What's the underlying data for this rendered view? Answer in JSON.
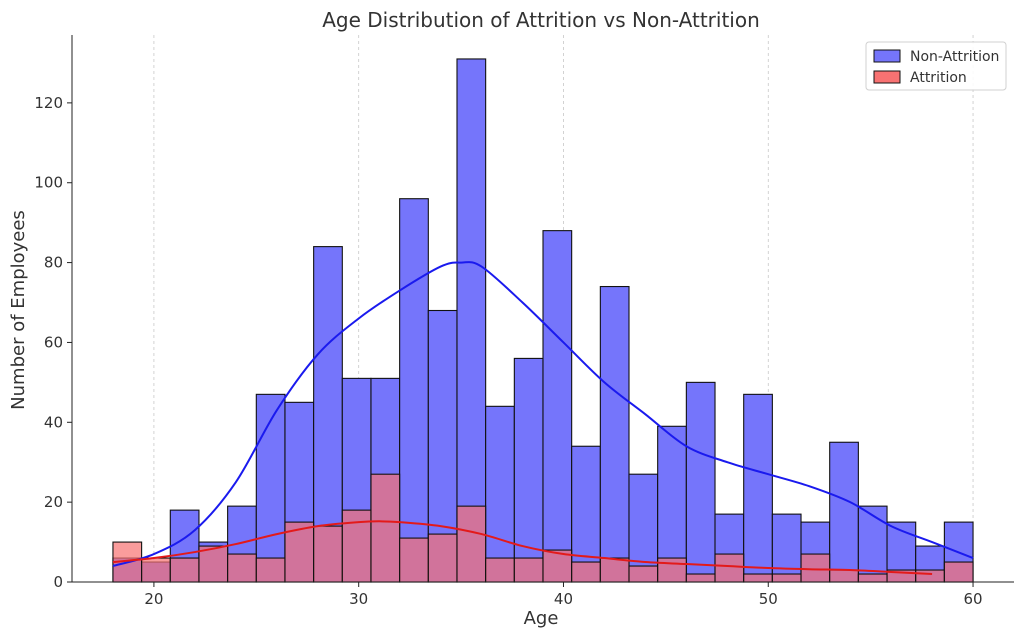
{
  "chart_data": {
    "type": "histogram",
    "title": "Age Distribution of Attrition vs Non-Attrition",
    "xlabel": "Age",
    "ylabel": "Number of Employees",
    "xlim": [
      16,
      62
    ],
    "ylim": [
      0,
      137
    ],
    "x_ticks": [
      20,
      30,
      40,
      50,
      60
    ],
    "y_ticks": [
      0,
      20,
      40,
      60,
      80,
      100,
      120
    ],
    "grid": "x-dashed",
    "legend_position": "top-right",
    "series": [
      {
        "name": "Non-Attrition",
        "color": "#7575fb",
        "edge_color": "#111111",
        "kde_color": "#1a1aee",
        "bins": [
          {
            "x0": 18.0,
            "x1": 19.4,
            "count": 6
          },
          {
            "x0": 19.4,
            "x1": 20.8,
            "count": 5
          },
          {
            "x0": 20.8,
            "x1": 22.2,
            "count": 18
          },
          {
            "x0": 22.2,
            "x1": 23.6,
            "count": 10
          },
          {
            "x0": 23.6,
            "x1": 25.0,
            "count": 19
          },
          {
            "x0": 25.0,
            "x1": 26.4,
            "count": 47
          },
          {
            "x0": 26.4,
            "x1": 27.8,
            "count": 45
          },
          {
            "x0": 27.8,
            "x1": 29.2,
            "count": 84
          },
          {
            "x0": 29.2,
            "x1": 30.6,
            "count": 51
          },
          {
            "x0": 30.6,
            "x1": 32.0,
            "count": 51
          },
          {
            "x0": 32.0,
            "x1": 33.4,
            "count": 96
          },
          {
            "x0": 33.4,
            "x1": 34.8,
            "count": 68
          },
          {
            "x0": 34.8,
            "x1": 36.2,
            "count": 131
          },
          {
            "x0": 36.2,
            "x1": 37.6,
            "count": 44
          },
          {
            "x0": 37.6,
            "x1": 39.0,
            "count": 56
          },
          {
            "x0": 39.0,
            "x1": 40.4,
            "count": 88
          },
          {
            "x0": 40.4,
            "x1": 41.8,
            "count": 34
          },
          {
            "x0": 41.8,
            "x1": 43.2,
            "count": 74
          },
          {
            "x0": 43.2,
            "x1": 44.6,
            "count": 27
          },
          {
            "x0": 44.6,
            "x1": 46.0,
            "count": 39
          },
          {
            "x0": 46.0,
            "x1": 47.4,
            "count": 50
          },
          {
            "x0": 47.4,
            "x1": 48.8,
            "count": 17
          },
          {
            "x0": 48.8,
            "x1": 50.2,
            "count": 47
          },
          {
            "x0": 50.2,
            "x1": 51.6,
            "count": 17
          },
          {
            "x0": 51.6,
            "x1": 53.0,
            "count": 15
          },
          {
            "x0": 53.0,
            "x1": 54.4,
            "count": 35
          },
          {
            "x0": 54.4,
            "x1": 55.8,
            "count": 19
          },
          {
            "x0": 55.8,
            "x1": 57.2,
            "count": 15
          },
          {
            "x0": 57.2,
            "x1": 58.6,
            "count": 9
          },
          {
            "x0": 58.6,
            "x1": 60.0,
            "count": 15
          }
        ],
        "kde": {
          "x": [
            18,
            20,
            22,
            24,
            26,
            28,
            30,
            32,
            34,
            35,
            36,
            38,
            40,
            42,
            44,
            46,
            48,
            50,
            52,
            54,
            56,
            58,
            60
          ],
          "y": [
            4,
            7,
            13,
            25,
            43,
            57,
            66,
            73,
            79,
            80,
            79,
            70,
            60,
            50,
            42,
            34,
            30,
            27,
            24,
            20,
            14,
            10,
            6
          ]
        }
      },
      {
        "name": "Attrition",
        "color": "#f87272",
        "edge_color": "#111111",
        "kde_color": "#e31a1a",
        "bins": [
          {
            "x0": 18.0,
            "x1": 19.4,
            "count": 10
          },
          {
            "x0": 19.4,
            "x1": 20.8,
            "count": 6
          },
          {
            "x0": 20.8,
            "x1": 22.2,
            "count": 6
          },
          {
            "x0": 22.2,
            "x1": 23.6,
            "count": 9
          },
          {
            "x0": 23.6,
            "x1": 25.0,
            "count": 7
          },
          {
            "x0": 25.0,
            "x1": 26.4,
            "count": 6
          },
          {
            "x0": 26.4,
            "x1": 27.8,
            "count": 15
          },
          {
            "x0": 27.8,
            "x1": 29.2,
            "count": 14
          },
          {
            "x0": 29.2,
            "x1": 30.6,
            "count": 18
          },
          {
            "x0": 30.6,
            "x1": 32.0,
            "count": 27
          },
          {
            "x0": 32.0,
            "x1": 33.4,
            "count": 11
          },
          {
            "x0": 33.4,
            "x1": 34.8,
            "count": 12
          },
          {
            "x0": 34.8,
            "x1": 36.2,
            "count": 19
          },
          {
            "x0": 36.2,
            "x1": 37.6,
            "count": 6
          },
          {
            "x0": 37.6,
            "x1": 39.0,
            "count": 6
          },
          {
            "x0": 39.0,
            "x1": 40.4,
            "count": 8
          },
          {
            "x0": 40.4,
            "x1": 41.8,
            "count": 5
          },
          {
            "x0": 41.8,
            "x1": 43.2,
            "count": 6
          },
          {
            "x0": 43.2,
            "x1": 44.6,
            "count": 4
          },
          {
            "x0": 44.6,
            "x1": 46.0,
            "count": 6
          },
          {
            "x0": 46.0,
            "x1": 47.4,
            "count": 2
          },
          {
            "x0": 47.4,
            "x1": 48.8,
            "count": 7
          },
          {
            "x0": 48.8,
            "x1": 50.2,
            "count": 2
          },
          {
            "x0": 50.2,
            "x1": 51.6,
            "count": 2
          },
          {
            "x0": 51.6,
            "x1": 53.0,
            "count": 7
          },
          {
            "x0": 53.0,
            "x1": 54.4,
            "count": 3
          },
          {
            "x0": 54.4,
            "x1": 55.8,
            "count": 2
          },
          {
            "x0": 55.8,
            "x1": 57.2,
            "count": 3
          },
          {
            "x0": 57.2,
            "x1": 58.6,
            "count": 3
          },
          {
            "x0": 58.6,
            "x1": 60.0,
            "count": 5
          }
        ],
        "kde": {
          "x": [
            18,
            20,
            22,
            24,
            26,
            28,
            30,
            31,
            32,
            34,
            36,
            38,
            40,
            42,
            44,
            46,
            48,
            50,
            52,
            54,
            56,
            58
          ],
          "y": [
            5,
            6,
            7.5,
            9.5,
            12,
            14,
            15,
            15.2,
            15,
            14,
            12,
            9,
            7,
            6,
            5,
            4.5,
            4,
            3.5,
            3.2,
            3,
            2.5,
            2
          ]
        }
      }
    ]
  }
}
